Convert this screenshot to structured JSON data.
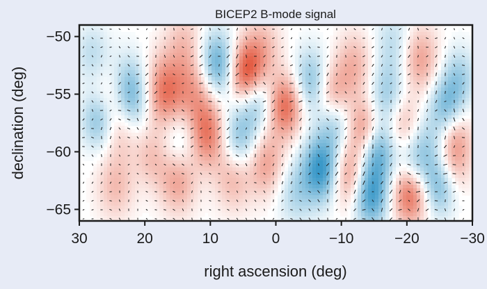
{
  "chart_data": {
    "type": "heatmap",
    "title": "BICEP2 B-mode signal",
    "xlabel": "right ascension (deg)",
    "ylabel": "declination (deg)",
    "xlim": [
      30,
      -30
    ],
    "ylim": [
      -66,
      -49
    ],
    "x_ticks": [
      30,
      20,
      10,
      0,
      -10,
      -20,
      -30
    ],
    "x_tick_labels": [
      "30",
      "20",
      "10",
      "0",
      "−10",
      "−20",
      "−30"
    ],
    "y_ticks": [
      -50,
      -55,
      -60,
      -65
    ],
    "y_tick_labels": [
      "−50",
      "−55",
      "−60",
      "−65"
    ],
    "grid": false,
    "colormap": {
      "negative": "#3a98c8",
      "zero": "#ffffff",
      "positive": "#e2543a"
    },
    "field_color": "#ffffff",
    "vector_color": "#1a1a1a",
    "blobs": [
      {
        "ra": 22.5,
        "dec": -55.2,
        "amp": -0.85,
        "w": 2.2
      },
      {
        "ra": 27.0,
        "dec": -57.2,
        "amp": -0.6,
        "w": 1.8
      },
      {
        "ra": 25.0,
        "dec": -55.5,
        "amp": 0.45,
        "w": 2.0
      },
      {
        "ra": 23.5,
        "dec": -58.0,
        "amp": 0.35,
        "w": 2.0
      },
      {
        "ra": 17.0,
        "dec": -54.8,
        "amp": 0.75,
        "w": 2.2
      },
      {
        "ra": 12.0,
        "dec": -54.6,
        "amp": 0.5,
        "w": 2.2
      },
      {
        "ra": 10.5,
        "dec": -58.5,
        "amp": 0.7,
        "w": 2.0
      },
      {
        "ra": 15.0,
        "dec": -62.5,
        "amp": 0.5,
        "w": 2.0
      },
      {
        "ra": 19.0,
        "dec": -60.5,
        "amp": 0.3,
        "w": 1.8
      },
      {
        "ra": 24.5,
        "dec": -63.0,
        "amp": 0.35,
        "w": 2.0
      },
      {
        "ra": 14.5,
        "dec": -59.0,
        "amp": -0.3,
        "w": 2.0
      },
      {
        "ra": 9.0,
        "dec": -52.5,
        "amp": -0.8,
        "w": 2.0
      },
      {
        "ra": 4.5,
        "dec": -53.2,
        "amp": 0.95,
        "w": 1.9
      },
      {
        "ra": 3.0,
        "dec": -55.5,
        "amp": -0.5,
        "w": 1.8
      },
      {
        "ra": 5.5,
        "dec": -58.8,
        "amp": -0.55,
        "w": 2.0
      },
      {
        "ra": 1.5,
        "dec": -61.0,
        "amp": 0.5,
        "w": 2.0
      },
      {
        "ra": 6.5,
        "dec": -62.2,
        "amp": 0.4,
        "w": 2.0
      },
      {
        "ra": -1.5,
        "dec": -56.0,
        "amp": 0.8,
        "w": 1.9
      },
      {
        "ra": 2.0,
        "dec": -51.0,
        "amp": 0.35,
        "w": 2.0
      },
      {
        "ra": -3.0,
        "dec": -63.5,
        "amp": -0.35,
        "w": 2.0
      },
      {
        "ra": -5.5,
        "dec": -54.0,
        "amp": -0.6,
        "w": 2.0
      },
      {
        "ra": -9.0,
        "dec": -57.5,
        "amp": -0.45,
        "w": 1.8
      },
      {
        "ra": -8.5,
        "dec": -55.0,
        "amp": 0.55,
        "w": 1.9
      },
      {
        "ra": -7.0,
        "dec": -61.5,
        "amp": -0.95,
        "w": 2.0
      },
      {
        "ra": -11.0,
        "dec": -62.0,
        "amp": 0.6,
        "w": 2.0
      },
      {
        "ra": -12.0,
        "dec": -52.5,
        "amp": 0.4,
        "w": 2.0
      },
      {
        "ra": -13.5,
        "dec": -58.0,
        "amp": 0.6,
        "w": 1.8
      },
      {
        "ra": -14.5,
        "dec": -63.8,
        "amp": -0.85,
        "w": 1.9
      },
      {
        "ra": -15.5,
        "dec": -60.0,
        "amp": -0.7,
        "w": 1.9
      },
      {
        "ra": -17.0,
        "dec": -55.0,
        "amp": -0.45,
        "w": 2.0
      },
      {
        "ra": -19.5,
        "dec": -57.5,
        "amp": 0.4,
        "w": 1.8
      },
      {
        "ra": -20.5,
        "dec": -63.5,
        "amp": 0.9,
        "w": 1.9
      },
      {
        "ra": -21.0,
        "dec": -61.5,
        "amp": -0.45,
        "w": 1.8
      },
      {
        "ra": -22.0,
        "dec": -52.0,
        "amp": 0.5,
        "w": 2.0
      },
      {
        "ra": -23.0,
        "dec": -59.5,
        "amp": -0.35,
        "w": 2.0
      },
      {
        "ra": -25.0,
        "dec": -63.0,
        "amp": -0.6,
        "w": 1.8
      },
      {
        "ra": -26.0,
        "dec": -56.0,
        "amp": -0.55,
        "w": 1.8
      },
      {
        "ra": -27.5,
        "dec": -59.0,
        "amp": 0.45,
        "w": 1.8
      },
      {
        "ra": -28.0,
        "dec": -53.5,
        "amp": -0.4,
        "w": 1.8
      },
      {
        "ra": -27.0,
        "dec": -61.5,
        "amp": 0.3,
        "w": 1.8
      },
      {
        "ra": 28.0,
        "dec": -51.5,
        "amp": -0.3,
        "w": 1.8
      },
      {
        "ra": 14.0,
        "dec": -50.5,
        "amp": 0.3,
        "w": 2.0
      },
      {
        "ra": -18.0,
        "dec": -50.5,
        "amp": -0.3,
        "w": 2.0
      }
    ]
  }
}
